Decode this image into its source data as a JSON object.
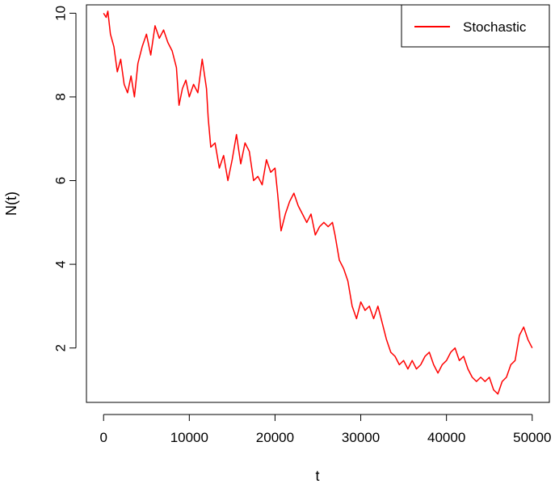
{
  "chart_data": {
    "type": "line",
    "title": "",
    "xlabel": "t",
    "ylabel": "N(t)",
    "xlim": [
      -2000,
      52000
    ],
    "ylim": [
      0.7,
      10.2
    ],
    "x_ticks": [
      0,
      10000,
      20000,
      30000,
      40000,
      50000
    ],
    "x_tick_labels": [
      "0",
      "10000",
      "20000",
      "30000",
      "40000",
      "50000"
    ],
    "y_ticks": [
      2,
      4,
      6,
      8,
      10
    ],
    "y_tick_labels": [
      "2",
      "4",
      "6",
      "8",
      "10"
    ],
    "grid": false,
    "legend": {
      "position": "top-right",
      "entries": [
        "Stochastic"
      ]
    },
    "series": [
      {
        "name": "Stochastic",
        "color": "#ff0000",
        "points": [
          [
            0,
            10.0
          ],
          [
            300,
            9.9
          ],
          [
            500,
            10.05
          ],
          [
            800,
            9.5
          ],
          [
            1200,
            9.2
          ],
          [
            1600,
            8.6
          ],
          [
            2000,
            8.9
          ],
          [
            2400,
            8.3
          ],
          [
            2800,
            8.1
          ],
          [
            3200,
            8.5
          ],
          [
            3600,
            8.0
          ],
          [
            4000,
            8.8
          ],
          [
            4500,
            9.2
          ],
          [
            5000,
            9.5
          ],
          [
            5500,
            9.0
          ],
          [
            6000,
            9.7
          ],
          [
            6500,
            9.4
          ],
          [
            7000,
            9.6
          ],
          [
            7500,
            9.3
          ],
          [
            8000,
            9.1
          ],
          [
            8500,
            8.7
          ],
          [
            8800,
            7.8
          ],
          [
            9200,
            8.2
          ],
          [
            9600,
            8.4
          ],
          [
            10000,
            8.0
          ],
          [
            10500,
            8.3
          ],
          [
            11000,
            8.1
          ],
          [
            11500,
            8.9
          ],
          [
            12000,
            8.2
          ],
          [
            12200,
            7.5
          ],
          [
            12500,
            6.8
          ],
          [
            13000,
            6.9
          ],
          [
            13500,
            6.3
          ],
          [
            14000,
            6.6
          ],
          [
            14500,
            6.0
          ],
          [
            15000,
            6.5
          ],
          [
            15500,
            7.1
          ],
          [
            16000,
            6.4
          ],
          [
            16500,
            6.9
          ],
          [
            17000,
            6.7
          ],
          [
            17500,
            6.0
          ],
          [
            18000,
            6.1
          ],
          [
            18500,
            5.9
          ],
          [
            19000,
            6.5
          ],
          [
            19500,
            6.2
          ],
          [
            20000,
            6.3
          ],
          [
            20300,
            5.7
          ],
          [
            20700,
            4.8
          ],
          [
            21200,
            5.2
          ],
          [
            21700,
            5.5
          ],
          [
            22200,
            5.7
          ],
          [
            22700,
            5.4
          ],
          [
            23200,
            5.2
          ],
          [
            23700,
            5.0
          ],
          [
            24200,
            5.2
          ],
          [
            24700,
            4.7
          ],
          [
            25200,
            4.9
          ],
          [
            25700,
            5.0
          ],
          [
            26200,
            4.9
          ],
          [
            26700,
            5.0
          ],
          [
            27000,
            4.7
          ],
          [
            27500,
            4.1
          ],
          [
            28000,
            3.9
          ],
          [
            28500,
            3.6
          ],
          [
            29000,
            3.0
          ],
          [
            29500,
            2.7
          ],
          [
            30000,
            3.1
          ],
          [
            30500,
            2.9
          ],
          [
            31000,
            3.0
          ],
          [
            31500,
            2.7
          ],
          [
            32000,
            3.0
          ],
          [
            32500,
            2.6
          ],
          [
            33000,
            2.2
          ],
          [
            33500,
            1.9
          ],
          [
            34000,
            1.8
          ],
          [
            34500,
            1.6
          ],
          [
            35000,
            1.7
          ],
          [
            35500,
            1.5
          ],
          [
            36000,
            1.7
          ],
          [
            36500,
            1.5
          ],
          [
            37000,
            1.6
          ],
          [
            37500,
            1.8
          ],
          [
            38000,
            1.9
          ],
          [
            38500,
            1.6
          ],
          [
            39000,
            1.4
          ],
          [
            39500,
            1.6
          ],
          [
            40000,
            1.7
          ],
          [
            40500,
            1.9
          ],
          [
            41000,
            2.0
          ],
          [
            41500,
            1.7
          ],
          [
            42000,
            1.8
          ],
          [
            42500,
            1.5
          ],
          [
            43000,
            1.3
          ],
          [
            43500,
            1.2
          ],
          [
            44000,
            1.3
          ],
          [
            44500,
            1.2
          ],
          [
            45000,
            1.3
          ],
          [
            45500,
            1.0
          ],
          [
            46000,
            0.9
          ],
          [
            46500,
            1.2
          ],
          [
            47000,
            1.3
          ],
          [
            47500,
            1.6
          ],
          [
            48000,
            1.7
          ],
          [
            48500,
            2.3
          ],
          [
            49000,
            2.5
          ],
          [
            49500,
            2.2
          ],
          [
            50000,
            2.0
          ]
        ]
      }
    ]
  }
}
